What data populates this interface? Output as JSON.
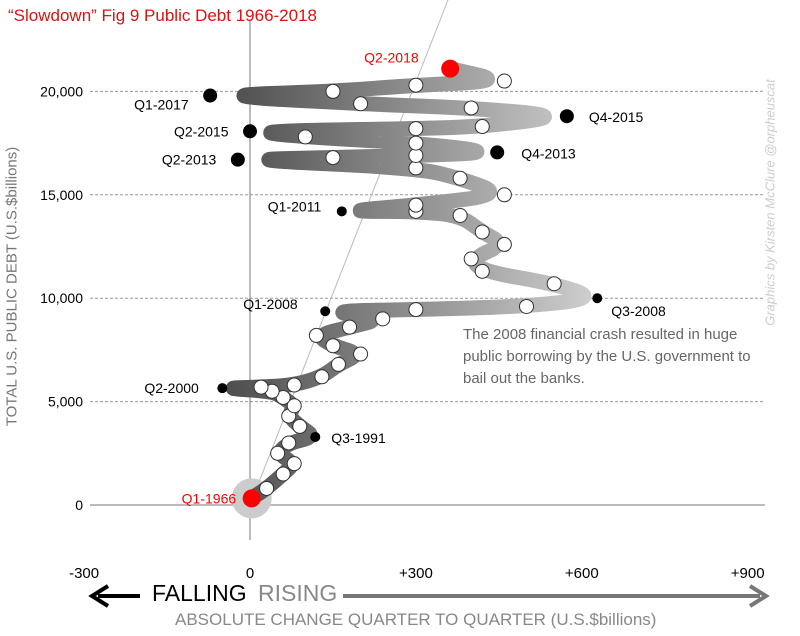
{
  "title": "“Slowdown” Fig 9 Public Debt 1966-2018",
  "annotation": "The 2008 financial crash resulted in huge public borrowing by the U.S. government to bail out the banks.",
  "credit": "Graphics by Kirsten McClure @orpheuscat",
  "falling_label": "FALLING",
  "rising_label": "RISING",
  "chart_data": {
    "type": "scatter",
    "title": "“Slowdown” Fig 9 Public Debt 1966-2018",
    "xlabel": "ABSOLUTE CHANGE QUARTER TO QUARTER (U.S.$billions)",
    "ylabel": "TOTAL U.S. PUBLIC DEBT (U.S.$billions)",
    "xlim": [
      -300,
      900
    ],
    "ylim": [
      0,
      22000
    ],
    "x_ticks": [
      "-300",
      "0",
      "+300",
      "+600",
      "+900"
    ],
    "x_tick_values": [
      -300,
      0,
      300,
      600,
      900
    ],
    "y_ticks": [
      "0",
      "5,000",
      "10,000",
      "15,000",
      "20,000"
    ],
    "y_tick_values": [
      0,
      5000,
      10000,
      15000,
      20000
    ],
    "grid": "horizontal dashed",
    "colors": {
      "ribbon_dark": "#444444",
      "ribbon_light": "#d8d8d8",
      "highlight": "#ff0000"
    },
    "path": [
      [
        3,
        320
      ],
      [
        30,
        800
      ],
      [
        60,
        1500
      ],
      [
        80,
        2000
      ],
      [
        50,
        2500
      ],
      [
        70,
        3000
      ],
      [
        118,
        3290
      ],
      [
        90,
        3800
      ],
      [
        70,
        4300
      ],
      [
        80,
        4800
      ],
      [
        60,
        5200
      ],
      [
        40,
        5500
      ],
      [
        -50,
        5650
      ],
      [
        20,
        5700
      ],
      [
        80,
        5800
      ],
      [
        130,
        6200
      ],
      [
        160,
        6800
      ],
      [
        200,
        7300
      ],
      [
        150,
        7700
      ],
      [
        120,
        8200
      ],
      [
        180,
        8600
      ],
      [
        240,
        9000
      ],
      [
        136,
        9370
      ],
      [
        300,
        9450
      ],
      [
        500,
        9600
      ],
      [
        628,
        10000
      ],
      [
        550,
        10700
      ],
      [
        420,
        11300
      ],
      [
        400,
        11900
      ],
      [
        460,
        12600
      ],
      [
        420,
        13200
      ],
      [
        380,
        14000
      ],
      [
        300,
        14200
      ],
      [
        166,
        14200
      ],
      [
        300,
        14500
      ],
      [
        460,
        15000
      ],
      [
        380,
        15800
      ],
      [
        300,
        16300
      ],
      [
        -22,
        16700
      ],
      [
        150,
        16800
      ],
      [
        300,
        16900
      ],
      [
        447,
        17050
      ],
      [
        300,
        17500
      ],
      [
        100,
        17800
      ],
      [
        0,
        18070
      ],
      [
        300,
        18200
      ],
      [
        420,
        18300
      ],
      [
        573,
        18800
      ],
      [
        400,
        19200
      ],
      [
        200,
        19400
      ],
      [
        -72,
        19800
      ],
      [
        150,
        20000
      ],
      [
        300,
        20300
      ],
      [
        460,
        20500
      ],
      [
        362,
        21100
      ]
    ],
    "labeled_points": [
      {
        "label": "Q1-1966",
        "x": 3,
        "y": 320,
        "highlight": true
      },
      {
        "label": "Q3-1991",
        "x": 118,
        "y": 3290
      },
      {
        "label": "Q2-2000",
        "x": -50,
        "y": 5650
      },
      {
        "label": "Q1-2008",
        "x": 136,
        "y": 9370
      },
      {
        "label": "Q3-2008",
        "x": 628,
        "y": 10000
      },
      {
        "label": "Q1-2011",
        "x": 166,
        "y": 14200
      },
      {
        "label": "Q2-2013",
        "x": -22,
        "y": 16700
      },
      {
        "label": "Q4-2013",
        "x": 447,
        "y": 17050
      },
      {
        "label": "Q2-2015",
        "x": 0,
        "y": 18070
      },
      {
        "label": "Q4-2015",
        "x": 573,
        "y": 18800
      },
      {
        "label": "Q1-2017",
        "x": -72,
        "y": 19800
      },
      {
        "label": "Q2-2018",
        "x": 362,
        "y": 21100,
        "highlight": true
      }
    ]
  }
}
